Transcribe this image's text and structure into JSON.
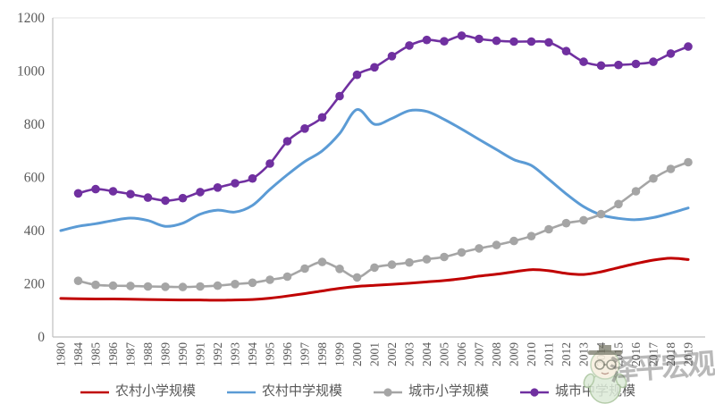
{
  "chart_data": {
    "type": "line",
    "title": "",
    "categories": [
      "1980",
      "1984",
      "1985",
      "1986",
      "1987",
      "1988",
      "1989",
      "1990",
      "1991",
      "1992",
      "1993",
      "1994",
      "1995",
      "1996",
      "1997",
      "1998",
      "1999",
      "2000",
      "2001",
      "2002",
      "2003",
      "2004",
      "2005",
      "2006",
      "2007",
      "2008",
      "2009",
      "2010",
      "2011",
      "2012",
      "2013",
      "2014",
      "2015",
      "2016",
      "2017",
      "2018",
      "2019"
    ],
    "ylim": [
      0,
      1200
    ],
    "yticks": [
      0,
      200,
      400,
      600,
      800,
      1000,
      1200
    ],
    "grid": false,
    "legend_position": "bottom",
    "axis_color": "#bfbfbf",
    "tick_label_color": "#595959",
    "series": [
      {
        "name": "农村小学规模",
        "key": "rural-primary",
        "color": "#c00000",
        "marker": false,
        "values": [
          145,
          144,
          143,
          143,
          142,
          141,
          140,
          139,
          139,
          138,
          139,
          141,
          146,
          154,
          163,
          173,
          183,
          190,
          194,
          198,
          202,
          207,
          212,
          219,
          229,
          236,
          245,
          253,
          249,
          239,
          235,
          245,
          261,
          276,
          289,
          296,
          291
        ]
      },
      {
        "name": "农村中学规模",
        "key": "rural-secondary",
        "color": "#5b9bd5",
        "marker": false,
        "values": [
          400,
          416,
          426,
          438,
          447,
          438,
          416,
          428,
          462,
          477,
          470,
          495,
          555,
          610,
          660,
          700,
          765,
          855,
          800,
          822,
          851,
          848,
          818,
          782,
          743,
          705,
          667,
          645,
          593,
          538,
          490,
          459,
          446,
          441,
          449,
          466,
          485
        ]
      },
      {
        "name": "城市小学规模",
        "key": "urban-primary",
        "color": "#a5a5a5",
        "marker": true,
        "values": [
          null,
          211,
          196,
          193,
          192,
          190,
          189,
          188,
          190,
          193,
          199,
          204,
          215,
          227,
          257,
          282,
          256,
          224,
          261,
          272,
          280,
          292,
          301,
          318,
          333,
          346,
          361,
          379,
          405,
          428,
          439,
          462,
          500,
          548,
          596,
          632,
          657
        ]
      },
      {
        "name": "城市中学规模",
        "key": "urban-secondary",
        "color": "#7030a0",
        "marker": true,
        "values": [
          null,
          540,
          556,
          548,
          537,
          524,
          513,
          522,
          545,
          562,
          578,
          596,
          652,
          736,
          784,
          826,
          906,
          986,
          1014,
          1056,
          1096,
          1117,
          1112,
          1133,
          1121,
          1114,
          1111,
          1111,
          1108,
          1075,
          1035,
          1021,
          1023,
          1027,
          1035,
          1066,
          1092
        ]
      }
    ]
  },
  "watermark": {
    "text": "泽平宏观"
  }
}
